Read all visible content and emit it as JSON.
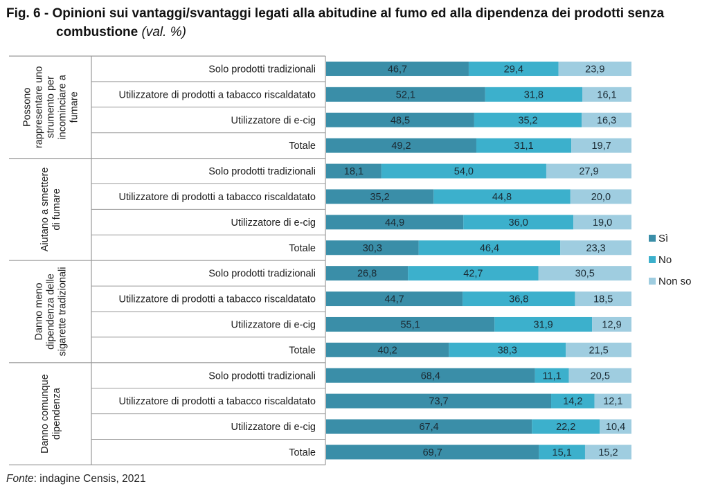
{
  "title": {
    "main": "Fig. 6 - Opinioni sui vantaggi/svantaggi legati alla abitudine al fumo ed alla dipendenza dei prodotti senza",
    "main_line2": "combustione",
    "subtitle": "(val. %)"
  },
  "source": {
    "label": "Fonte",
    "text": ": indagine Censis, 2021"
  },
  "chart_data": {
    "type": "bar",
    "orientation": "horizontal",
    "stacked": true,
    "percent": true,
    "title": "Opinioni sui vantaggi/svantaggi legati alla abitudine al fumo ed alla dipendenza dei prodotti senza combustione (val. %)",
    "xlim": [
      0,
      100
    ],
    "legend_position": "right",
    "series": [
      {
        "name": "Sì",
        "color": "#3a8ea8"
      },
      {
        "name": "No",
        "color": "#3cb0cc"
      },
      {
        "name": "Non so",
        "color": "#9fcde0"
      }
    ],
    "groups": [
      {
        "label_lines": [
          "Possono",
          "rappresentare uno",
          "strumento per",
          "incominciare a",
          "fumare"
        ],
        "rows": [
          {
            "label": "Solo prodotti tradizionali",
            "values": [
              46.7,
              29.4,
              23.9
            ],
            "labels": [
              "46,7",
              "29,4",
              "23,9"
            ]
          },
          {
            "label": "Utilizzatore di prodotti a tabacco riscaldatato",
            "values": [
              52.1,
              31.8,
              16.1
            ],
            "labels": [
              "52,1",
              "31,8",
              "16,1"
            ]
          },
          {
            "label": "Utilizzatore di e-cig",
            "values": [
              48.5,
              35.2,
              16.3
            ],
            "labels": [
              "48,5",
              "35,2",
              "16,3"
            ]
          },
          {
            "label": "Totale",
            "values": [
              49.2,
              31.1,
              19.7
            ],
            "labels": [
              "49,2",
              "31,1",
              "19,7"
            ]
          }
        ]
      },
      {
        "label_lines": [
          "Aiutano a smettere",
          "di fumare"
        ],
        "rows": [
          {
            "label": "Solo prodotti tradizionali",
            "values": [
              18.1,
              54.0,
              27.9
            ],
            "labels": [
              "18,1",
              "54,0",
              "27,9"
            ]
          },
          {
            "label": "Utilizzatore di prodotti a tabacco riscaldatato",
            "values": [
              35.2,
              44.8,
              20.0
            ],
            "labels": [
              "35,2",
              "44,8",
              "20,0"
            ]
          },
          {
            "label": "Utilizzatore di e-cig",
            "values": [
              44.9,
              36.0,
              19.0
            ],
            "labels": [
              "44,9",
              "36,0",
              "19,0"
            ]
          },
          {
            "label": "Totale",
            "values": [
              30.3,
              46.4,
              23.3
            ],
            "labels": [
              "30,3",
              "46,4",
              "23,3"
            ]
          }
        ]
      },
      {
        "label_lines": [
          "Danno  meno",
          "dipendenza delle",
          "sigarette tradizionali"
        ],
        "rows": [
          {
            "label": "Solo prodotti tradizionali",
            "values": [
              26.8,
              42.7,
              30.5
            ],
            "labels": [
              "26,8",
              "42,7",
              "30,5"
            ]
          },
          {
            "label": "Utilizzatore di prodotti a tabacco riscaldatato",
            "values": [
              44.7,
              36.8,
              18.5
            ],
            "labels": [
              "44,7",
              "36,8",
              "18,5"
            ]
          },
          {
            "label": "Utilizzatore di e-cig",
            "values": [
              55.1,
              31.9,
              12.9
            ],
            "labels": [
              "55,1",
              "31,9",
              "12,9"
            ]
          },
          {
            "label": "Totale",
            "values": [
              40.2,
              38.3,
              21.5
            ],
            "labels": [
              "40,2",
              "38,3",
              "21,5"
            ]
          }
        ]
      },
      {
        "label_lines": [
          "Danno comunque",
          "dipendenza"
        ],
        "rows": [
          {
            "label": "Solo prodotti tradizionali",
            "values": [
              68.4,
              11.1,
              20.5
            ],
            "labels": [
              "68,4",
              "11,1",
              "20,5"
            ]
          },
          {
            "label": "Utilizzatore di prodotti a tabacco riscaldatato",
            "values": [
              73.7,
              14.2,
              12.1
            ],
            "labels": [
              "73,7",
              "14,2",
              "12,1"
            ]
          },
          {
            "label": "Utilizzatore di e-cig",
            "values": [
              67.4,
              22.2,
              10.4
            ],
            "labels": [
              "67,4",
              "22,2",
              "10,4"
            ]
          },
          {
            "label": "Totale",
            "values": [
              69.7,
              15.1,
              15.2
            ],
            "labels": [
              "69,7",
              "15,1",
              "15,2"
            ]
          }
        ]
      }
    ]
  }
}
